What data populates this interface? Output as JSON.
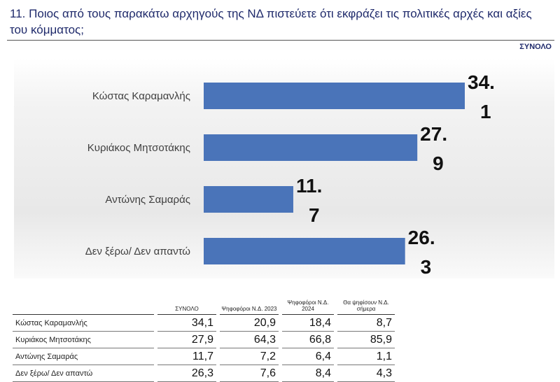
{
  "title": "11. Ποιος από τους παρακάτω αρχηγούς της ΝΔ πιστεύετε ότι εκφράζει τις πολιτικές αρχές και αξίες του κόμματος;",
  "total_label": "ΣΥΝΟΛΟ",
  "chart_data": {
    "type": "bar",
    "orientation": "horizontal",
    "categories": [
      "Κώστας Καραμανλής",
      "Κυριάκος Μητσοτάκης",
      "Αντώνης Σαμαράς",
      "Δεν ξέρω/ Δεν απαντώ"
    ],
    "values": [
      34.1,
      27.9,
      11.7,
      26.3
    ],
    "value_labels": [
      [
        "34.",
        "1"
      ],
      [
        "27.",
        "9"
      ],
      [
        "11.",
        "7"
      ],
      [
        "26.",
        "3"
      ]
    ],
    "title": "",
    "xlabel": "",
    "ylabel": "",
    "bar_color": "#4a74b9",
    "xlim": [
      0,
      34.1
    ],
    "grid": false
  },
  "table": {
    "headers": [
      "",
      "ΣΥΝΟΛΟ",
      "Ψηφοφόροι Ν.Δ. 2023",
      "Ψηφοφόροι Ν.Δ. 2024",
      "Θα ψηφίσουν Ν.Δ. σήμερα"
    ],
    "rows": [
      [
        "Κώστας Καραμανλής",
        "34,1",
        "20,9",
        "18,4",
        "8,7"
      ],
      [
        "Κυριάκος Μητσοτάκης",
        "27,9",
        "64,3",
        "66,8",
        "85,9"
      ],
      [
        "Αντώνης Σαμαράς",
        "11,7",
        "7,2",
        "6,4",
        "1,1"
      ],
      [
        "Δεν ξέρω/ Δεν απαντώ",
        "26,3",
        "7,6",
        "8,4",
        "4,3"
      ]
    ]
  }
}
